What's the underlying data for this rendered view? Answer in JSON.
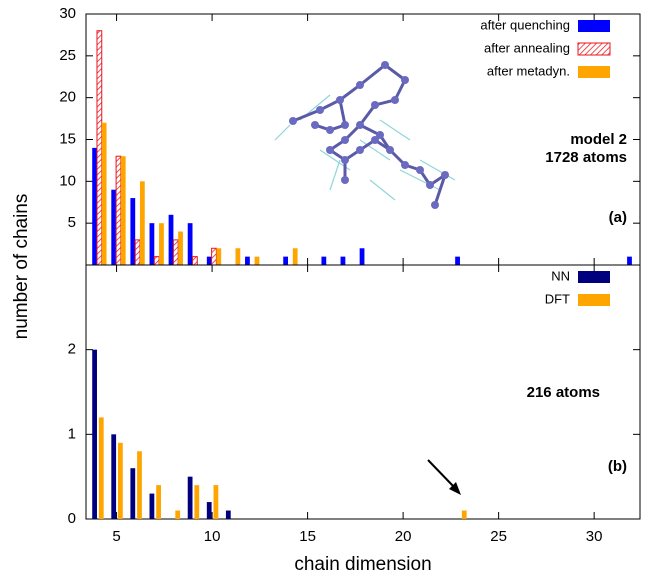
{
  "chart_data": [
    {
      "type": "bar",
      "ylabel": "number of chains",
      "x": [
        4,
        5,
        6,
        7,
        8,
        9,
        10,
        11,
        12,
        14,
        16,
        17,
        18,
        23,
        32
      ],
      "series": [
        {
          "name": "after quenching",
          "color": "#0000ff",
          "values": [
            14,
            9,
            8,
            5,
            6,
            5,
            1,
            0,
            1,
            1,
            1,
            1,
            2,
            1,
            1
          ]
        },
        {
          "name": "after annealing",
          "color": "#e8141e",
          "fill": "hatched",
          "values": [
            28,
            13,
            3,
            1,
            3,
            1,
            2,
            0,
            0,
            0,
            0,
            0,
            0,
            0,
            0
          ]
        },
        {
          "name": "after metadyn.",
          "color": "#ffa500",
          "values": [
            17,
            13,
            10,
            5,
            4,
            0,
            2,
            2,
            1,
            2,
            0,
            0,
            0,
            0,
            0
          ]
        }
      ],
      "xlim": [
        3.4,
        32.4
      ],
      "ylim": [
        0,
        30
      ],
      "yticks": [
        0,
        5,
        10,
        15,
        20,
        25,
        30
      ],
      "legend": "upper right",
      "annotations": [
        "model 2",
        "1728 atoms",
        "(a)"
      ]
    },
    {
      "type": "bar",
      "xlabel": "chain dimension",
      "x": [
        4,
        5,
        6,
        7,
        8,
        9,
        10,
        11,
        23
      ],
      "series": [
        {
          "name": "NN",
          "color": "#00007f",
          "values": [
            2,
            1,
            0.6,
            0.3,
            0,
            0.5,
            0.2,
            0.1,
            0
          ]
        },
        {
          "name": "DFT",
          "color": "#ffa500",
          "values": [
            1.2,
            0.9,
            0.8,
            0.4,
            0.1,
            0.4,
            0.4,
            0,
            0.1
          ]
        }
      ],
      "xlim": [
        3.4,
        32.4
      ],
      "ylim": [
        0,
        3
      ],
      "yticks": [
        0,
        1,
        2
      ],
      "xticks": [
        5,
        10,
        15,
        20,
        25,
        30
      ],
      "legend": "upper right",
      "annotations": [
        "216 atoms",
        "(b)"
      ]
    }
  ]
}
